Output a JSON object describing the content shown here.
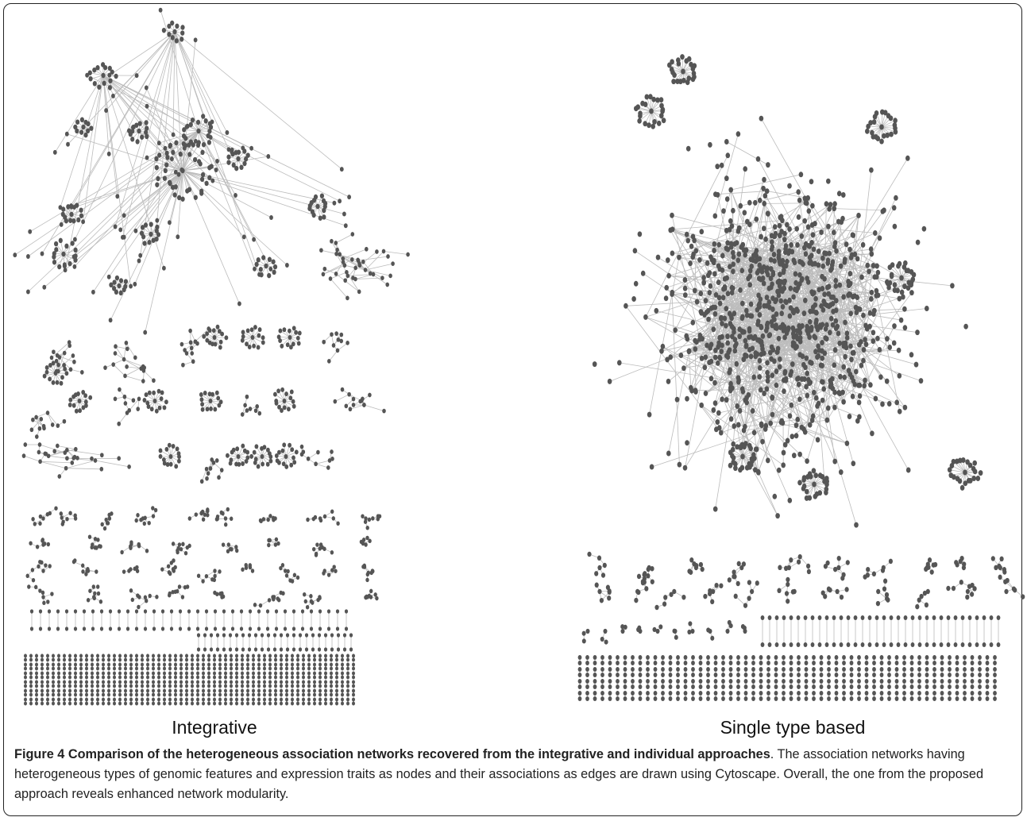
{
  "figure": {
    "panels": [
      {
        "label": "Integrative"
      },
      {
        "label": "Single type based"
      }
    ],
    "caption": {
      "title": "Figure 4 Comparison of the heterogeneous association networks recovered from the integrative and individual approaches",
      "text": ". The association networks having heterogeneous types of genomic features and expression traits as nodes and their associations as edges are drawn using Cytoscape. Overall, the one from the proposed approach reveals enhanced network modularity."
    }
  }
}
